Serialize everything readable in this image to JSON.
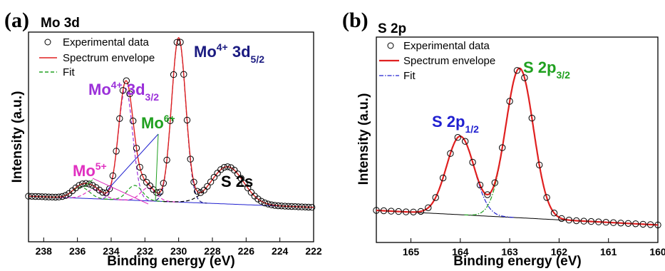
{
  "chart_data": [
    {
      "panel": "(a)",
      "subtitle": "Mo 3d",
      "type": "line",
      "xlabel": "Binding energy (eV)",
      "ylabel": "Intensity (a.u.)",
      "x_reversed": true,
      "xlim": [
        238.9,
        222
      ],
      "ylim": [
        0,
        100
      ],
      "xticks": [
        238,
        236,
        234,
        232,
        230,
        228,
        226,
        224,
        222
      ],
      "legend": [
        {
          "label": "Experimental data",
          "style": "open-circle",
          "color": "#000000"
        },
        {
          "label": "Spectrum envelope",
          "style": "solid",
          "color": "#e02020"
        },
        {
          "label": "Fit",
          "style": "dashed",
          "color": "#20a020"
        }
      ],
      "components": [
        {
          "label": "Mo4+ 3d5/2",
          "center": 230.0,
          "height": 88,
          "width": 0.42,
          "color": "#1a1a80"
        },
        {
          "label": "Mo4+ 3d3/2",
          "center": 233.15,
          "height": 60,
          "width": 0.42,
          "color": "#9b30d9"
        },
        {
          "label": "Mo6+",
          "center": 232.6,
          "height": 8,
          "width": 0.45,
          "color": "#20a020"
        },
        {
          "label": "Mo6+",
          "center": 235.8,
          "height": 6,
          "width": 0.5,
          "color": "#20a020"
        },
        {
          "label": "Mo5+",
          "center": 231.8,
          "height": 7,
          "width": 0.45,
          "color": "#e030c0"
        },
        {
          "label": "Mo5+",
          "center": 235.0,
          "height": 5,
          "width": 0.5,
          "color": "#e030c0"
        },
        {
          "label": "S 2s",
          "center": 227.1,
          "height": 20,
          "width": 0.95,
          "color": "#000000"
        }
      ],
      "baseline": {
        "start": 8,
        "end": 2
      },
      "exp_points_x": [
        238.9,
        238.7,
        238.5,
        238.3,
        238.1,
        237.9,
        237.7,
        237.5,
        237.3,
        237.1,
        236.9,
        236.7,
        236.5,
        236.3,
        236.1,
        235.9,
        235.7,
        235.5,
        235.3,
        235.1,
        234.9,
        234.7,
        234.5,
        234.3,
        234.1,
        233.9,
        233.7,
        233.5,
        233.3,
        233.1,
        232.9,
        232.7,
        232.5,
        232.3,
        232.1,
        231.9,
        231.7,
        231.5,
        231.3,
        231.1,
        230.9,
        230.7,
        230.5,
        230.3,
        230.1,
        229.9,
        229.7,
        229.5,
        229.3,
        229.1,
        228.9,
        228.7,
        228.5,
        228.3,
        228.1,
        227.9,
        227.7,
        227.5,
        227.3,
        227.1,
        226.9,
        226.7,
        226.5,
        226.3,
        226.1,
        225.9,
        225.7,
        225.5,
        225.3,
        225.1,
        224.9,
        224.7,
        224.5,
        224.3,
        224.1,
        223.9,
        223.7,
        223.5,
        223.3,
        223.1,
        222.9,
        222.7,
        222.5,
        222.3,
        222.1
      ],
      "annotations": [
        {
          "base": "Mo",
          "sup": "4+",
          "rest": " 3d",
          "sub": "5/2",
          "color": "#1a1a80"
        },
        {
          "base": "Mo",
          "sup": "4+",
          "rest": " 3d",
          "sub": "3/2",
          "color": "#9b30d9"
        },
        {
          "base": "Mo",
          "sup": "6+",
          "rest": "",
          "sub": "",
          "color": "#20a020"
        },
        {
          "base": "Mo",
          "sup": "5+",
          "rest": "",
          "sub": "",
          "color": "#e030c0"
        },
        {
          "base": "S 2s",
          "sup": "",
          "rest": "",
          "sub": "",
          "color": "#000000"
        }
      ]
    },
    {
      "panel": "(b)",
      "subtitle": "S 2p",
      "type": "line",
      "xlabel": "Binding energy (eV)",
      "ylabel": "Intensity (a.u.)",
      "x_reversed": true,
      "xlim": [
        165.7,
        160
      ],
      "ylim": [
        0,
        100
      ],
      "xticks": [
        165,
        164,
        163,
        162,
        161,
        160
      ],
      "legend": [
        {
          "label": "Experimental data",
          "style": "open-circle",
          "color": "#000000"
        },
        {
          "label": "Spectrum envelope",
          "style": "solid",
          "color": "#e02020"
        },
        {
          "label": "Fit",
          "style": "dash-dot",
          "color": "#2020d0"
        }
      ],
      "components": [
        {
          "label": "S 2p1/2",
          "center": 164.0,
          "height": 43,
          "width": 0.28,
          "color": "#2020d0"
        },
        {
          "label": "S 2p3/2",
          "center": 162.8,
          "height": 82,
          "width": 0.28,
          "color": "#20a020"
        }
      ],
      "baseline": {
        "start": 9,
        "end": 1
      },
      "exp_points_x": [
        165.7,
        165.55,
        165.4,
        165.25,
        165.1,
        164.95,
        164.8,
        164.65,
        164.5,
        164.35,
        164.2,
        164.05,
        163.9,
        163.75,
        163.6,
        163.45,
        163.3,
        163.15,
        163.0,
        162.85,
        162.7,
        162.55,
        162.4,
        162.25,
        162.1,
        161.95,
        161.8,
        161.65,
        161.5,
        161.35,
        161.2,
        161.05,
        160.9,
        160.75,
        160.6,
        160.45,
        160.3,
        160.15,
        160.0
      ],
      "annotations": [
        {
          "base": "S 2p",
          "sup": "",
          "rest": "",
          "sub": "1/2",
          "color": "#2020d0"
        },
        {
          "base": "S 2p",
          "sup": "",
          "rest": "",
          "sub": "3/2",
          "color": "#20a020"
        }
      ]
    }
  ]
}
